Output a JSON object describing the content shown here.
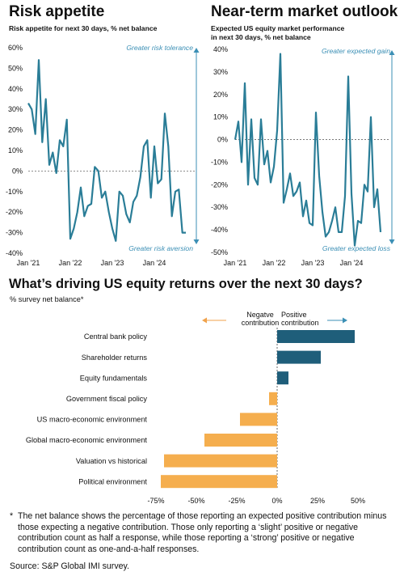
{
  "colors": {
    "line": "#2a7d97",
    "pos_bar": "#1f5e7a",
    "neg_bar": "#f5ae4e",
    "arrow_pos": "#3b8fb5",
    "arrow_neg": "#f0a24b",
    "annot": "#3b8fb5",
    "grid": "#d9d9d9",
    "text": "#111111"
  },
  "chart_data": [
    {
      "id": "risk",
      "type": "line",
      "title": "Risk appetite",
      "subtitle": "Risk appetite for next 30 days, % net balance",
      "ylim": [
        -40,
        60
      ],
      "yticks": [
        -40,
        -30,
        -20,
        -10,
        0,
        10,
        20,
        30,
        40,
        50,
        60
      ],
      "ytick_labels": [
        "-40%",
        "-30%",
        "-20%",
        "-10%",
        "0%",
        "10%",
        "20%",
        "30%",
        "40%",
        "50%",
        "60%"
      ],
      "xlim": [
        0,
        48
      ],
      "xticks": [
        0,
        12,
        24,
        36
      ],
      "xtick_labels": [
        "Jan '21",
        "Jan '22",
        "Jan '23",
        "Jan '24"
      ],
      "annotation_top": "Greater risk tolerance",
      "annotation_bottom": "Greater risk aversion",
      "x": [
        0,
        1,
        2,
        3,
        4,
        5,
        6,
        7,
        8,
        9,
        10,
        11,
        12,
        13,
        14,
        15,
        16,
        17,
        18,
        19,
        20,
        21,
        22,
        23,
        24,
        25,
        26,
        27,
        28,
        29,
        30,
        31,
        32,
        33,
        34,
        35,
        36,
        37,
        38,
        39,
        40,
        41,
        42,
        43,
        44,
        45
      ],
      "values": [
        33,
        30,
        18,
        54,
        14,
        35,
        3,
        9,
        -1,
        15,
        12,
        25,
        -33,
        -28,
        -20,
        -8,
        -22,
        -17,
        -16,
        2,
        0,
        -13,
        -10,
        -20,
        -28,
        -34,
        -10,
        -12,
        -21,
        -25,
        -15,
        -12,
        -3,
        12,
        15,
        -13,
        12,
        -6,
        -4,
        28,
        12,
        -22,
        -10,
        -9,
        -30,
        -30
      ]
    },
    {
      "id": "outlook",
      "type": "line",
      "title": "Near-term market outlook",
      "subtitle": "Expected US equity market performance in next 30 days, % net balance",
      "ylim": [
        -50,
        40
      ],
      "yticks": [
        -50,
        -40,
        -30,
        -20,
        -10,
        0,
        10,
        20,
        30,
        40
      ],
      "ytick_labels": [
        "-50%",
        "-40%",
        "-30%",
        "-20%",
        "-10%",
        "0%",
        "10%",
        "20%",
        "30%",
        "40%"
      ],
      "xlim": [
        0,
        48
      ],
      "xticks": [
        0,
        12,
        24,
        36
      ],
      "xtick_labels": [
        "Jan '21",
        "Jan '22",
        "Jan '23",
        "Jan '24"
      ],
      "annotation_top": "Greater expected gain",
      "annotation_bottom": "Greater  expected loss",
      "x": [
        0,
        1,
        2,
        3,
        4,
        5,
        6,
        7,
        8,
        9,
        10,
        11,
        12,
        13,
        14,
        15,
        16,
        17,
        18,
        19,
        20,
        21,
        22,
        23,
        24,
        25,
        26,
        27,
        28,
        29,
        30,
        31,
        32,
        33,
        34,
        35,
        36,
        37,
        38,
        39,
        40,
        41,
        42,
        43,
        44,
        45
      ],
      "values": [
        0,
        8,
        -10,
        25,
        -20,
        9,
        -17,
        -20,
        9,
        -11,
        -5,
        -19,
        -12,
        4,
        38,
        -28,
        -22,
        -15,
        -25,
        -23,
        -19,
        -34,
        -27,
        -37,
        -38,
        12,
        -16,
        -32,
        -43,
        -41,
        -36,
        -30,
        -41,
        -41,
        -25,
        28,
        -24,
        -47,
        -36,
        -37,
        -20,
        -23,
        10,
        -30,
        -22,
        -41
      ]
    },
    {
      "id": "drivers",
      "type": "bar",
      "orientation": "horizontal",
      "title": "What’s driving US equity returns over the next 30 days?",
      "subtitle": "% survey net balance*",
      "legend_negative": [
        "Negatve",
        "contribution"
      ],
      "legend_positive": [
        "Positive",
        "contribution"
      ],
      "categories": [
        "Central bank policy",
        "Shareholder returns",
        "Equity fundamentals",
        "Government fiscal policy",
        "US macro-economic environment",
        "Global macro-economic environment",
        "Valuation vs historical",
        "Political environment"
      ],
      "values": [
        48,
        27,
        7,
        -5,
        -23,
        -45,
        -70,
        -72
      ],
      "xlim": [
        -75,
        50
      ],
      "xticks": [
        -75,
        -50,
        -25,
        0,
        25,
        50
      ],
      "xtick_labels": [
        "-75%",
        "-50%",
        "-25%",
        "0%",
        "25%",
        "50%"
      ]
    }
  ],
  "footnote": {
    "marker": "*",
    "text": "The net balance shows the percentage of those reporting an expected positive contribution minus those expecting a negative contribution. Those only reporting a ‘slight’ positive or negative contribution count as half a response, while those reporting a ‘strong’ positive or negative contribution count as one-and-a-half responses."
  },
  "source": "Source: S&P Global IMI survey."
}
